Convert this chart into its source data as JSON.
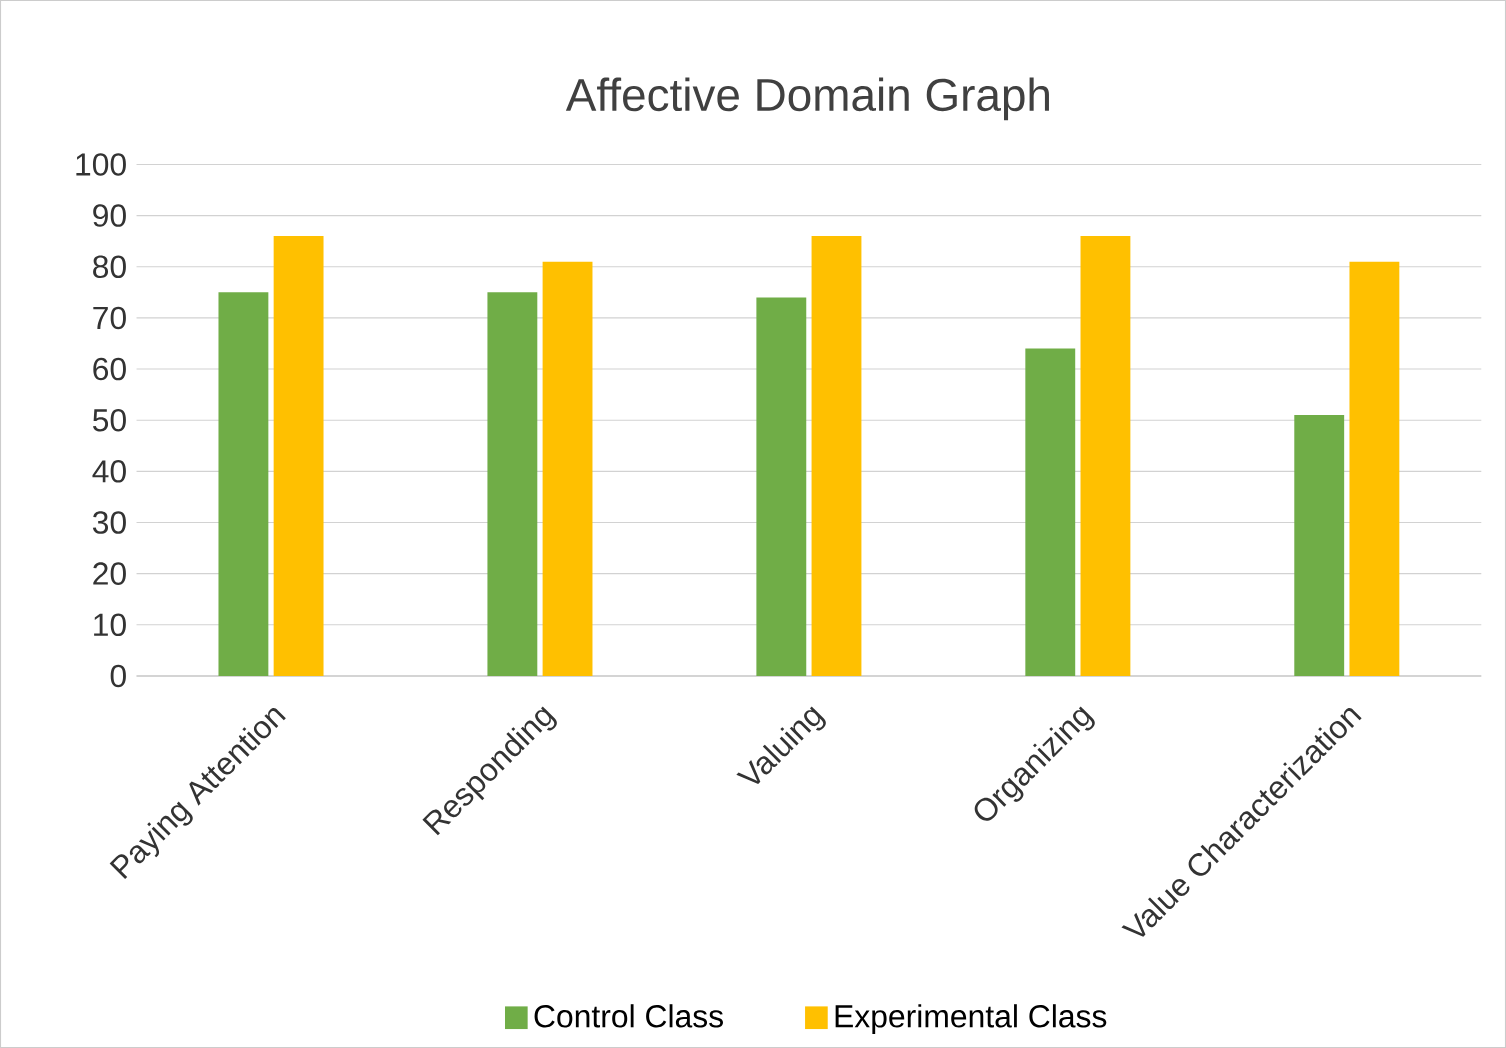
{
  "chart_data": {
    "type": "bar",
    "title": "Affective Domain Graph",
    "categories": [
      "Paying Attention",
      "Responding",
      "Valuing",
      "Organizing",
      "Value Characterization"
    ],
    "series": [
      {
        "name": "Control Class",
        "color": "#70ad47",
        "values": [
          75,
          75,
          74,
          64,
          51
        ]
      },
      {
        "name": "Experimental Class",
        "color": "#ffc000",
        "values": [
          86,
          81,
          86,
          86,
          81
        ]
      }
    ],
    "ylim": [
      0,
      100
    ],
    "yticks": [
      0,
      10,
      20,
      30,
      40,
      50,
      60,
      70,
      80,
      90,
      100
    ],
    "grid": "y",
    "legend": "bottom"
  }
}
